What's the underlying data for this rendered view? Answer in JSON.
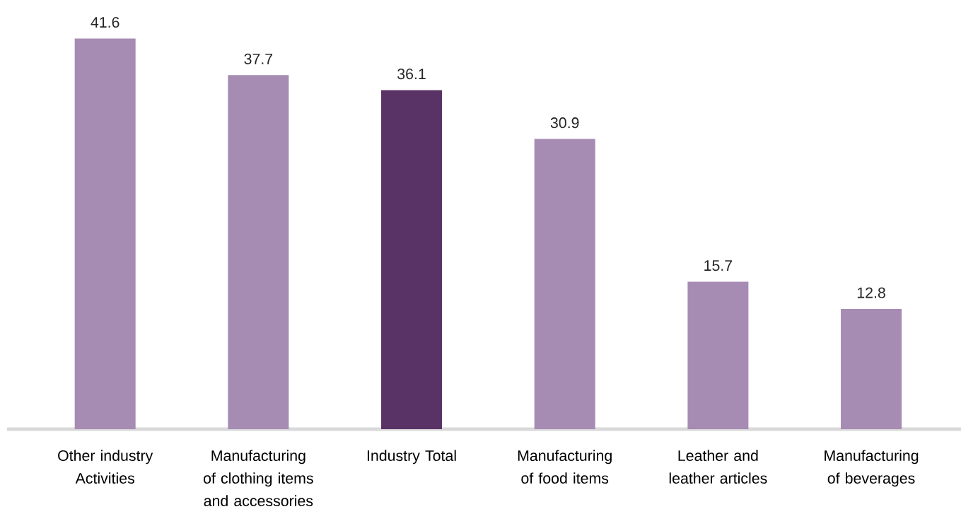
{
  "chart_data": {
    "type": "bar",
    "categories": [
      "Other industry Activities",
      "Manufacturing of clothing items and accessories",
      "Industry Total",
      "Manufacturing of food items",
      "Leather and leather articles",
      "Manufacturing of beverages"
    ],
    "values": [
      41.6,
      37.7,
      36.1,
      30.9,
      15.7,
      12.8
    ],
    "colors": [
      "#a68bb3",
      "#a68bb3",
      "#5a3366",
      "#a68bb3",
      "#a68bb3",
      "#a68bb3"
    ],
    "data_labels": true
  }
}
